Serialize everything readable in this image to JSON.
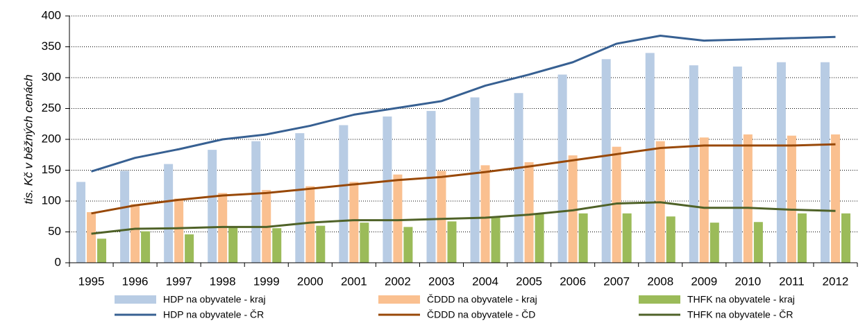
{
  "chart_data": {
    "type": "bar",
    "y_label": "tis. Kč v běžných cenách",
    "categories": [
      "1995",
      "1996",
      "1997",
      "1998",
      "1999",
      "2000",
      "2001",
      "2002",
      "2003",
      "2004",
      "2005",
      "2006",
      "2007",
      "2008",
      "2009",
      "2010",
      "2011",
      "2012"
    ],
    "series": [
      {
        "name": "HDP na obyvatele - kraj",
        "type": "bar",
        "color": "#b8cce4",
        "values": [
          131,
          149,
          160,
          183,
          197,
          210,
          223,
          237,
          246,
          268,
          275,
          305,
          330,
          340,
          320,
          318,
          325,
          325
        ]
      },
      {
        "name": "ČDDD na obyvatele - kraj",
        "type": "bar",
        "color": "#fac090",
        "values": [
          82,
          95,
          104,
          113,
          118,
          124,
          131,
          143,
          149,
          158,
          163,
          174,
          188,
          197,
          203,
          208,
          206,
          208
        ]
      },
      {
        "name": "THFK na obyvatele - kraj",
        "type": "bar",
        "color": "#9bbb59",
        "values": [
          39,
          51,
          46,
          58,
          56,
          60,
          65,
          58,
          67,
          73,
          80,
          80,
          80,
          75,
          65,
          66,
          80,
          80
        ]
      },
      {
        "name": "HDP na obyvatele - ČR",
        "type": "line",
        "color": "#376092",
        "values": [
          148,
          170,
          184,
          200,
          208,
          222,
          240,
          251,
          262,
          287,
          305,
          325,
          355,
          368,
          360,
          362,
          364,
          366
        ]
      },
      {
        "name": "ČDDD na obyvatele - ČD",
        "type": "line",
        "color": "#984807",
        "values": [
          80,
          93,
          102,
          109,
          113,
          120,
          127,
          134,
          139,
          147,
          156,
          166,
          176,
          186,
          190,
          190,
          190,
          192
        ]
      },
      {
        "name": "THFK na obyvatele - ČR",
        "type": "line",
        "color": "#4f6228",
        "values": [
          47,
          55,
          56,
          58,
          58,
          65,
          69,
          69,
          71,
          73,
          78,
          85,
          96,
          98,
          89,
          89,
          86,
          84
        ]
      }
    ],
    "ylim": [
      0,
      400
    ],
    "yticks": [
      0,
      50,
      100,
      150,
      200,
      250,
      300,
      350,
      400
    ],
    "grid": true
  }
}
